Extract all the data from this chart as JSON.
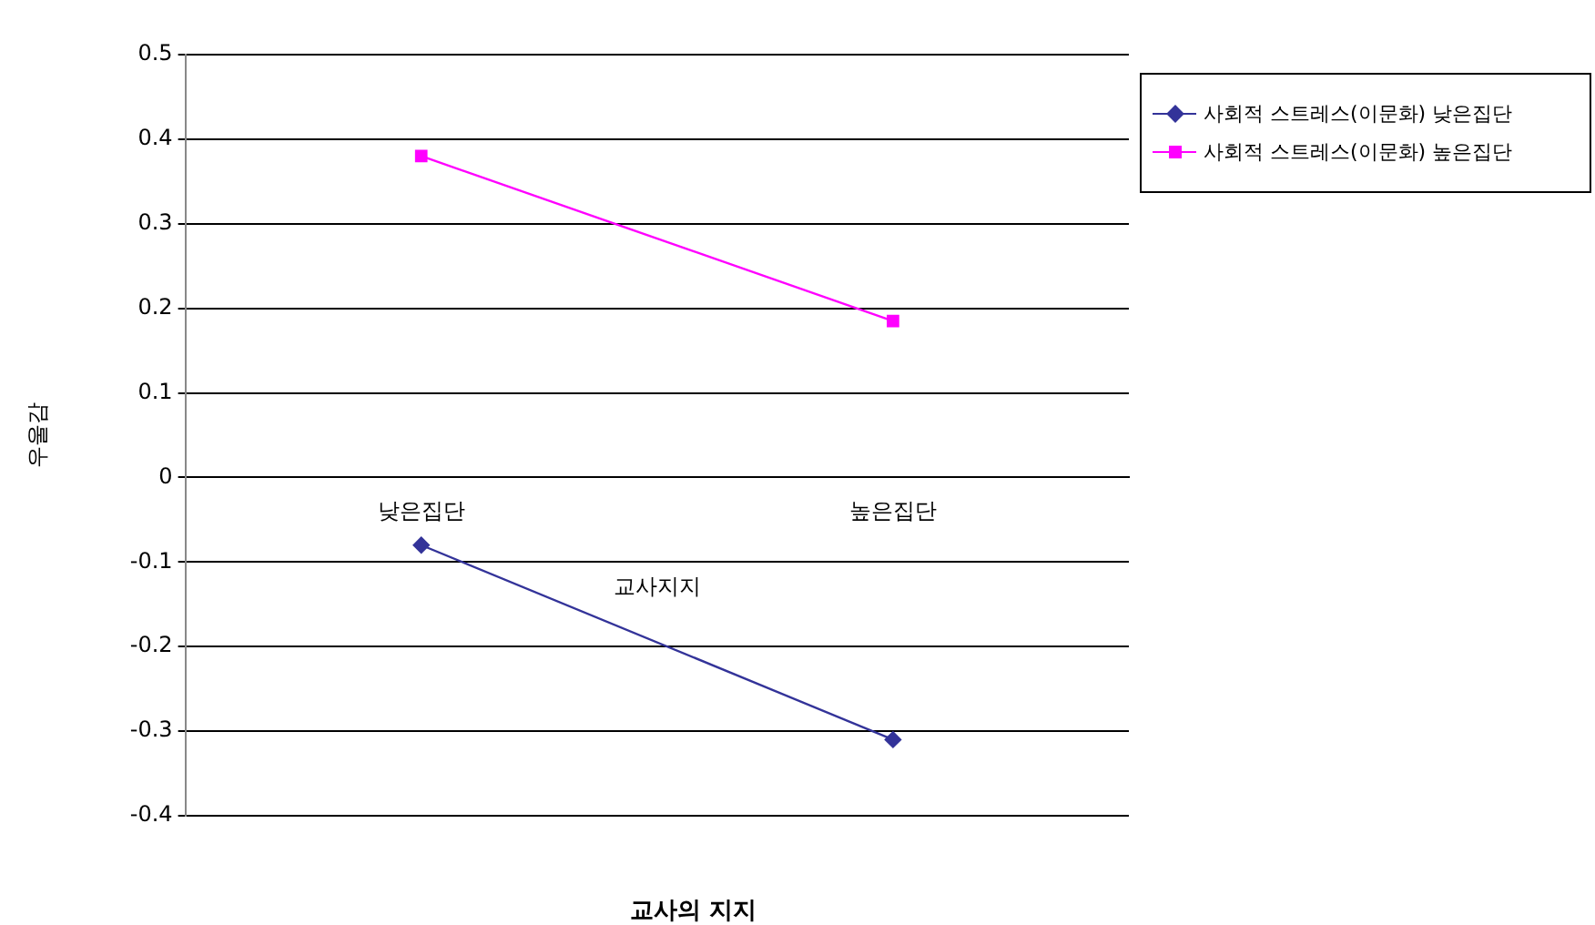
{
  "chart_data": {
    "type": "line",
    "xlabel": "교사의 지지",
    "ylabel": "우울감",
    "annotations": [
      "교사지지"
    ],
    "categories": [
      "낮은집단",
      "높은집단"
    ],
    "series": [
      {
        "name": "사회적 스트레스(이문화) 낮은집단",
        "color": "#333399",
        "values": [
          -0.08,
          -0.31
        ],
        "marker": "diamond"
      },
      {
        "name": "사회적 스트레스(이문화) 높은집단",
        "color": "#ff00ff",
        "values": [
          0.38,
          0.185
        ],
        "marker": "square"
      }
    ],
    "ylim": [
      -0.4,
      0.5
    ],
    "yticks": [
      -0.4,
      -0.3,
      -0.2,
      -0.1,
      0,
      0.1,
      0.2,
      0.3,
      0.4,
      0.5
    ],
    "grid": "y",
    "legend": "top right",
    "line_style": "solid"
  }
}
